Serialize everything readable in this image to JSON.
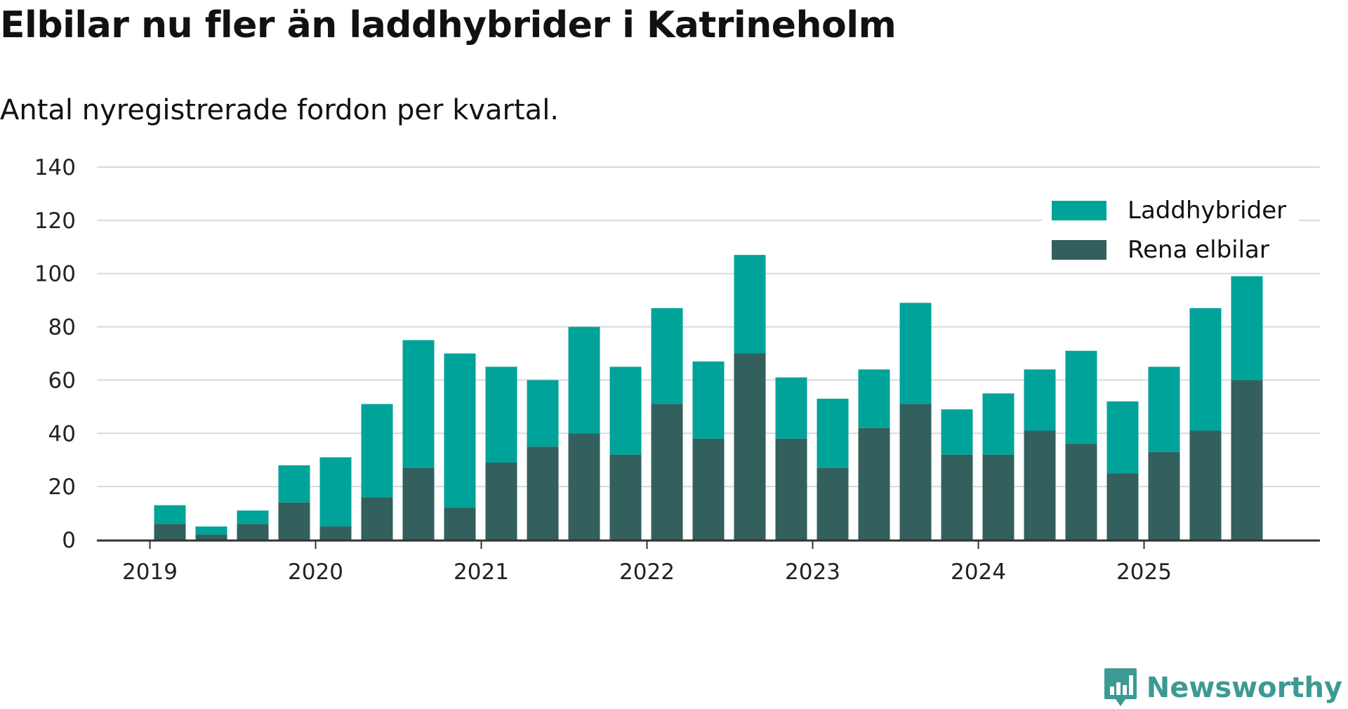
{
  "title": "Elbilar nu fler än laddhybrider i Katrineholm",
  "subtitle": "Antal nyregistrerade fordon per kvartal.",
  "brand": {
    "name": "Newsworthy",
    "color": "#3c9a93",
    "icon": "chart-bubble-icon"
  },
  "colors": {
    "laddhybrider": "#00a399",
    "rena_elbilar": "#335f5c",
    "grid": "#d9d9d9",
    "axis": "#333333"
  },
  "chart_data": {
    "type": "bar",
    "stacked": true,
    "x": [
      "2019 Q1",
      "2019 Q2",
      "2019 Q3",
      "2019 Q4",
      "2020 Q1",
      "2020 Q2",
      "2020 Q3",
      "2020 Q4",
      "2021 Q1",
      "2021 Q2",
      "2021 Q3",
      "2021 Q4",
      "2022 Q1",
      "2022 Q2",
      "2022 Q3",
      "2022 Q4",
      "2023 Q1",
      "2023 Q2",
      "2023 Q3",
      "2023 Q4",
      "2024 Q1",
      "2024 Q2",
      "2024 Q3",
      "2024 Q4",
      "2025 Q1",
      "2025 Q2",
      "2025 Q3"
    ],
    "x_tick_labels": [
      "2019",
      "2020",
      "2021",
      "2022",
      "2023",
      "2024",
      "2025"
    ],
    "y_ticks": [
      0,
      20,
      40,
      60,
      80,
      100,
      120,
      140
    ],
    "ylim": [
      0,
      140
    ],
    "grid": true,
    "legend_position": "top-right",
    "series": [
      {
        "name": "Rena elbilar",
        "color": "#335f5c",
        "values": [
          6,
          2,
          6,
          14,
          5,
          16,
          27,
          12,
          29,
          35,
          40,
          32,
          51,
          38,
          70,
          38,
          27,
          42,
          51,
          32,
          32,
          41,
          36,
          25,
          33,
          41,
          60
        ]
      },
      {
        "name": "Laddhybrider",
        "color": "#00a399",
        "values": [
          7,
          3,
          5,
          14,
          26,
          35,
          48,
          58,
          36,
          25,
          40,
          33,
          36,
          29,
          37,
          23,
          26,
          22,
          38,
          17,
          23,
          23,
          35,
          27,
          32,
          46,
          39
        ]
      }
    ]
  }
}
